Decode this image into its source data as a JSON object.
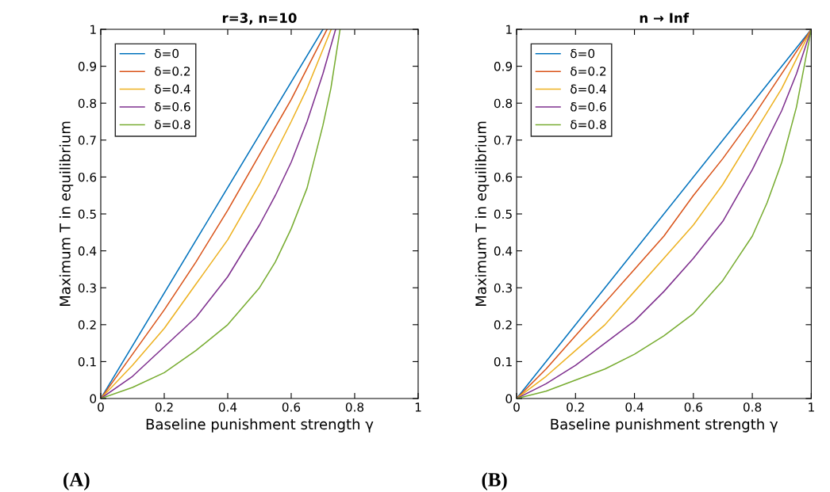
{
  "chart_data": [
    {
      "type": "line",
      "title": "r=3, n=10",
      "xlabel": "Baseline punishment strength γ",
      "ylabel": "Maximum T in equilibrium",
      "xlim": [
        0,
        1
      ],
      "ylim": [
        0,
        1
      ],
      "xticks": [
        0,
        0.2,
        0.4,
        0.6,
        0.8,
        1
      ],
      "yticks": [
        0,
        0.1,
        0.2,
        0.3,
        0.4,
        0.5,
        0.6,
        0.7,
        0.8,
        0.9,
        1
      ],
      "grid": false,
      "legend": "top left",
      "line_style": "solid",
      "marker": "none",
      "annotations": [
        "(A)"
      ],
      "series": [
        {
          "name": "δ=0",
          "color": "#0072bd",
          "x": [
            0,
            0.7
          ],
          "values": [
            0,
            1
          ]
        },
        {
          "name": "δ=0.2",
          "color": "#d95319",
          "x": [
            0,
            0.1,
            0.2,
            0.3,
            0.4,
            0.5,
            0.6,
            0.713
          ],
          "values": [
            0,
            0.12,
            0.24,
            0.37,
            0.51,
            0.66,
            0.81,
            1
          ]
        },
        {
          "name": "δ=0.4",
          "color": "#edb120",
          "x": [
            0,
            0.1,
            0.2,
            0.3,
            0.4,
            0.5,
            0.6,
            0.65,
            0.726
          ],
          "values": [
            0,
            0.09,
            0.19,
            0.31,
            0.43,
            0.58,
            0.75,
            0.84,
            1
          ]
        },
        {
          "name": "δ=0.6",
          "color": "#7e2f8e",
          "x": [
            0,
            0.1,
            0.2,
            0.3,
            0.4,
            0.5,
            0.55,
            0.6,
            0.65,
            0.7,
            0.74
          ],
          "values": [
            0,
            0.06,
            0.14,
            0.22,
            0.33,
            0.47,
            0.55,
            0.64,
            0.75,
            0.88,
            1
          ]
        },
        {
          "name": "δ=0.8",
          "color": "#77ac30",
          "x": [
            0,
            0.1,
            0.2,
            0.3,
            0.4,
            0.5,
            0.55,
            0.6,
            0.65,
            0.7,
            0.725,
            0.754
          ],
          "values": [
            0,
            0.03,
            0.07,
            0.13,
            0.2,
            0.3,
            0.37,
            0.46,
            0.57,
            0.74,
            0.84,
            1
          ]
        }
      ]
    },
    {
      "type": "line",
      "title": "n → Inf",
      "xlabel": "Baseline punishment strength γ",
      "ylabel": "Maximum T in equilibrium",
      "xlim": [
        0,
        1
      ],
      "ylim": [
        0,
        1
      ],
      "xticks": [
        0,
        0.2,
        0.4,
        0.6,
        0.8,
        1
      ],
      "yticks": [
        0,
        0.1,
        0.2,
        0.3,
        0.4,
        0.5,
        0.6,
        0.7,
        0.8,
        0.9,
        1
      ],
      "grid": false,
      "legend": "top left",
      "line_style": "solid",
      "marker": "none",
      "annotations": [
        "(B)"
      ],
      "series": [
        {
          "name": "δ=0",
          "color": "#0072bd",
          "x": [
            0,
            1
          ],
          "values": [
            0,
            1
          ]
        },
        {
          "name": "δ=0.2",
          "color": "#d95319",
          "x": [
            0,
            0.1,
            0.2,
            0.3,
            0.4,
            0.5,
            0.6,
            0.7,
            0.8,
            0.9,
            1
          ],
          "values": [
            0,
            0.08,
            0.17,
            0.26,
            0.35,
            0.44,
            0.55,
            0.65,
            0.76,
            0.88,
            1
          ]
        },
        {
          "name": "δ=0.4",
          "color": "#edb120",
          "x": [
            0,
            0.1,
            0.2,
            0.3,
            0.4,
            0.5,
            0.6,
            0.7,
            0.8,
            0.9,
            1
          ],
          "values": [
            0,
            0.06,
            0.13,
            0.2,
            0.29,
            0.38,
            0.47,
            0.58,
            0.71,
            0.84,
            1
          ]
        },
        {
          "name": "δ=0.6",
          "color": "#7e2f8e",
          "x": [
            0,
            0.1,
            0.2,
            0.3,
            0.4,
            0.5,
            0.6,
            0.7,
            0.8,
            0.9,
            0.95,
            1
          ],
          "values": [
            0,
            0.04,
            0.09,
            0.15,
            0.21,
            0.29,
            0.38,
            0.48,
            0.62,
            0.78,
            0.88,
            1
          ]
        },
        {
          "name": "δ=0.8",
          "color": "#77ac30",
          "x": [
            0,
            0.1,
            0.2,
            0.3,
            0.4,
            0.5,
            0.6,
            0.7,
            0.75,
            0.8,
            0.85,
            0.9,
            0.95,
            1
          ],
          "values": [
            0,
            0.02,
            0.05,
            0.08,
            0.12,
            0.17,
            0.23,
            0.32,
            0.38,
            0.44,
            0.53,
            0.64,
            0.79,
            1
          ]
        }
      ]
    }
  ]
}
